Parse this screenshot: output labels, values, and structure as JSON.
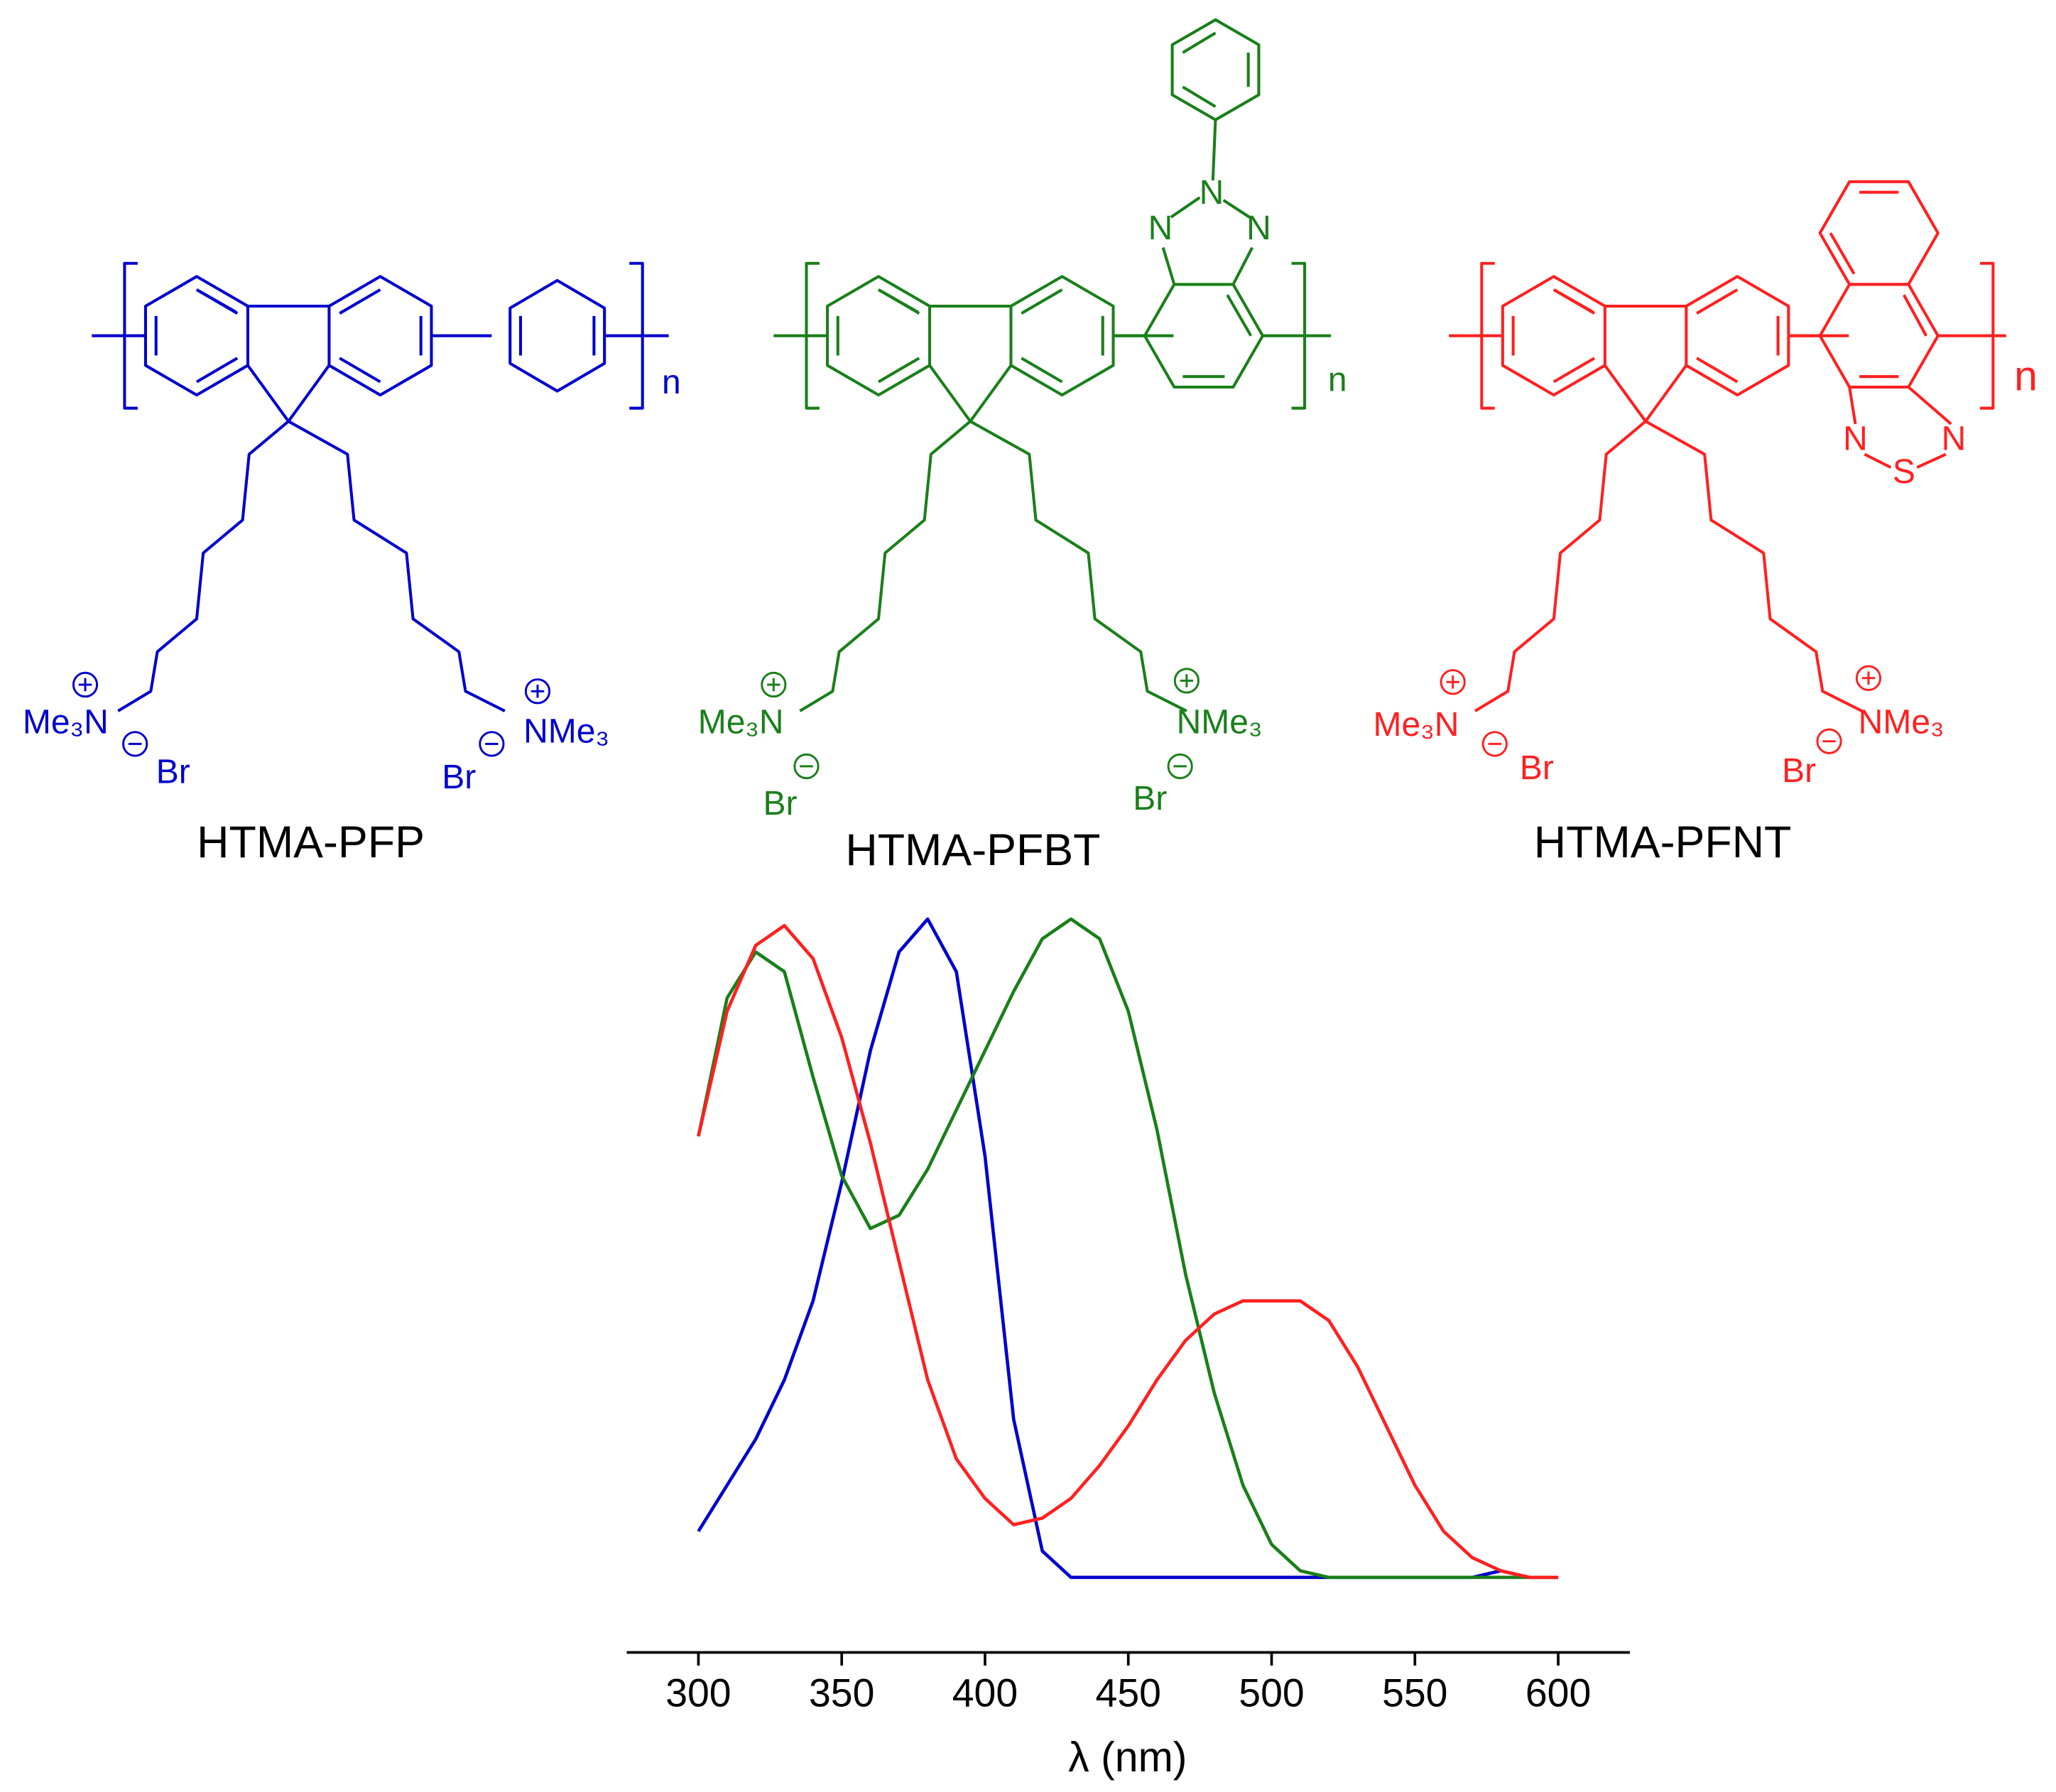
{
  "chart_data": {
    "type": "line",
    "xlabel": "λ (nm)",
    "x": [
      300,
      310,
      320,
      330,
      340,
      350,
      360,
      370,
      380,
      390,
      400,
      410,
      420,
      430,
      440,
      450,
      460,
      470,
      480,
      490,
      500,
      510,
      520,
      530,
      540,
      550,
      560,
      570,
      580,
      590,
      600
    ],
    "series": [
      {
        "name": "HTMA-PFP",
        "color": "#0000cc",
        "values": [
          0.07,
          0.14,
          0.21,
          0.3,
          0.42,
          0.6,
          0.8,
          0.95,
          1.0,
          0.92,
          0.64,
          0.24,
          0.04,
          0,
          0,
          0,
          0,
          0,
          0,
          0,
          0,
          0,
          0,
          0,
          0,
          0,
          0,
          0,
          0.01,
          0,
          0
        ]
      },
      {
        "name": "HTMA-PFBT",
        "color": "#1a7f1a",
        "values": [
          0.67,
          0.88,
          0.95,
          0.92,
          0.76,
          0.61,
          0.53,
          0.55,
          0.62,
          0.71,
          0.8,
          0.89,
          0.97,
          1.0,
          0.97,
          0.86,
          0.68,
          0.46,
          0.28,
          0.14,
          0.05,
          0.01,
          0,
          0,
          0,
          0,
          0,
          0,
          0,
          0,
          0
        ]
      },
      {
        "name": "HTMA-PFNT",
        "color": "#ff2020",
        "values": [
          0.67,
          0.86,
          0.96,
          0.99,
          0.94,
          0.82,
          0.66,
          0.48,
          0.3,
          0.18,
          0.12,
          0.08,
          0.09,
          0.12,
          0.17,
          0.23,
          0.3,
          0.36,
          0.4,
          0.42,
          0.42,
          0.42,
          0.39,
          0.32,
          0.23,
          0.14,
          0.07,
          0.03,
          0.01,
          0,
          0
        ]
      }
    ],
    "xlim": [
      275,
      625
    ],
    "xticks": [
      300,
      350,
      400,
      450,
      500,
      550,
      600
    ],
    "ylim": [
      -0.03,
      1.03
    ]
  },
  "structures": [
    {
      "cation_left": "Me₃N",
      "cation_right": "NMe₃",
      "anion": "Br",
      "repeat": "n"
    },
    {
      "cation_left": "Me₃N",
      "cation_right": "NMe₃",
      "anion": "Br",
      "repeat": "n",
      "atoms": [
        "N",
        "N",
        "N"
      ]
    },
    {
      "cation_left": "Me₃N",
      "cation_right": "NMe₃",
      "anion": "Br",
      "repeat": "n",
      "atoms": [
        "N",
        "S",
        "N"
      ]
    }
  ]
}
